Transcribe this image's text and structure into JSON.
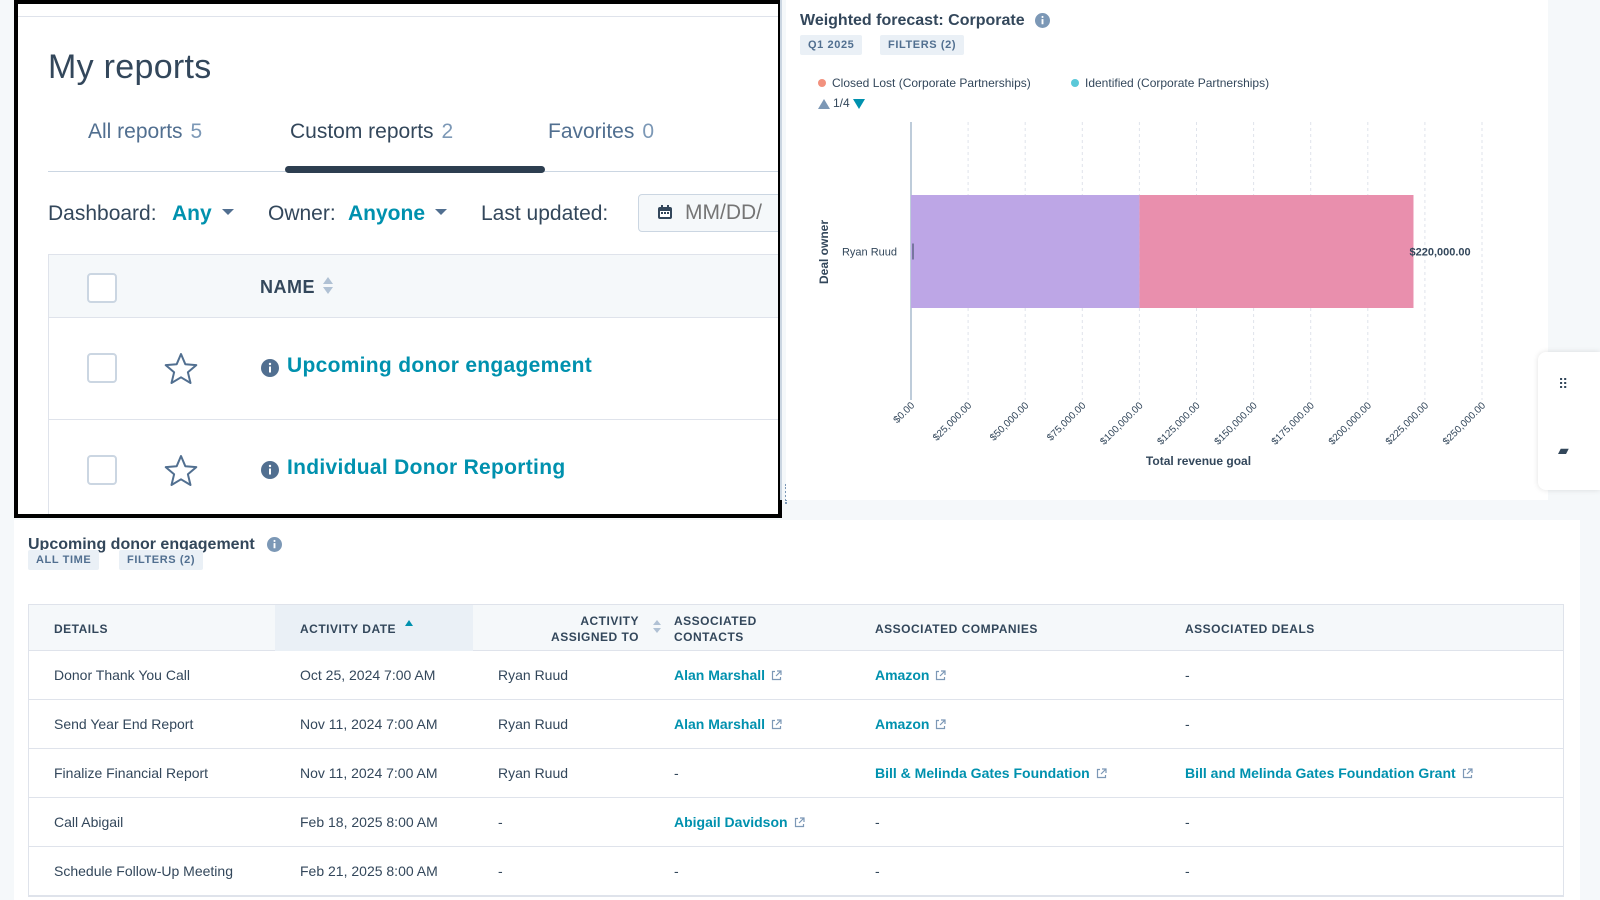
{
  "reports": {
    "title": "My reports",
    "tabs": [
      {
        "label": "All reports",
        "count": "5"
      },
      {
        "label": "Custom reports",
        "count": "2"
      },
      {
        "label": "Favorites",
        "count": "0"
      }
    ],
    "filters": {
      "dashboard_label": "Dashboard:",
      "dashboard_value": "Any",
      "owner_label": "Owner:",
      "owner_value": "Anyone",
      "updated_label": "Last updated:",
      "date_placeholder": "MM/DD/"
    },
    "table": {
      "name_header": "NAME",
      "rows": [
        {
          "name": "Upcoming donor engagement"
        },
        {
          "name": "Individual Donor Reporting"
        }
      ]
    }
  },
  "chart": {
    "title": "Weighted forecast: Corporate",
    "tags": [
      "Q1 2025",
      "FILTERS (2)"
    ],
    "legend": [
      {
        "label": "Closed Lost (Corporate Partnerships)",
        "color": "#f2917e"
      },
      {
        "label": "Identified (Corporate Partnerships)",
        "color": "#5ac8d8"
      }
    ],
    "legend_page": "1/4"
  },
  "chart_data": {
    "type": "bar",
    "orientation": "horizontal",
    "stacked": true,
    "categories": [
      "Ryan Ruud"
    ],
    "series": [
      {
        "values": [
          100000
        ],
        "color": "#bda6e6"
      },
      {
        "values": [
          120000
        ],
        "color": "#e98fad"
      }
    ],
    "total_labels": [
      "$220,000.00"
    ],
    "xlabel": "Total revenue goal",
    "ylabel": "Deal owner",
    "xlim": [
      0,
      250000
    ],
    "xticks": [
      "$0.00",
      "$25,000.00",
      "$50,000.00",
      "$75,000.00",
      "$100,000.00",
      "$125,000.00",
      "$150,000.00",
      "$175,000.00",
      "$200,000.00",
      "$225,000.00",
      "$250,000.00"
    ],
    "grid": true
  },
  "engagement": {
    "title": "Upcoming donor engagement",
    "tags": [
      "ALL TIME",
      "FILTERS (2)"
    ],
    "headers": {
      "details": "DETAILS",
      "activity_date": "ACTIVITY DATE",
      "assigned_1": "ACTIVITY",
      "assigned_2": "ASSIGNED TO",
      "contacts_1": "ASSOCIATED",
      "contacts_2": "CONTACTS",
      "companies": "ASSOCIATED COMPANIES",
      "deals": "ASSOCIATED DEALS"
    },
    "rows": [
      {
        "details": "Donor Thank You Call",
        "date": "Oct 25, 2024 7:00 AM",
        "assigned": "Ryan Ruud",
        "contact": "Alan Marshall",
        "company": "Amazon",
        "deal": "-"
      },
      {
        "details": "Send Year End Report",
        "date": "Nov 11, 2024 7:00 AM",
        "assigned": "Ryan Ruud",
        "contact": "Alan Marshall",
        "company": "Amazon",
        "deal": "-"
      },
      {
        "details": "Finalize Financial Report",
        "date": "Nov 11, 2024 7:00 AM",
        "assigned": "Ryan Ruud",
        "contact": "-",
        "company": "Bill & Melinda Gates Foundation",
        "deal": "Bill and Melinda Gates Foundation Grant"
      },
      {
        "details": "Call Abigail",
        "date": "Feb 18, 2025 8:00 AM",
        "assigned": "-",
        "contact": "Abigail Davidson",
        "company": "-",
        "deal": "-"
      },
      {
        "details": "Schedule Follow-Up Meeting",
        "date": "Feb 21, 2025 8:00 AM",
        "assigned": "-",
        "contact": "-",
        "company": "-",
        "deal": "-"
      }
    ]
  },
  "colors": {
    "link": "#0091ae",
    "text": "#33475b",
    "tab_indicator": "#2d3e50"
  }
}
